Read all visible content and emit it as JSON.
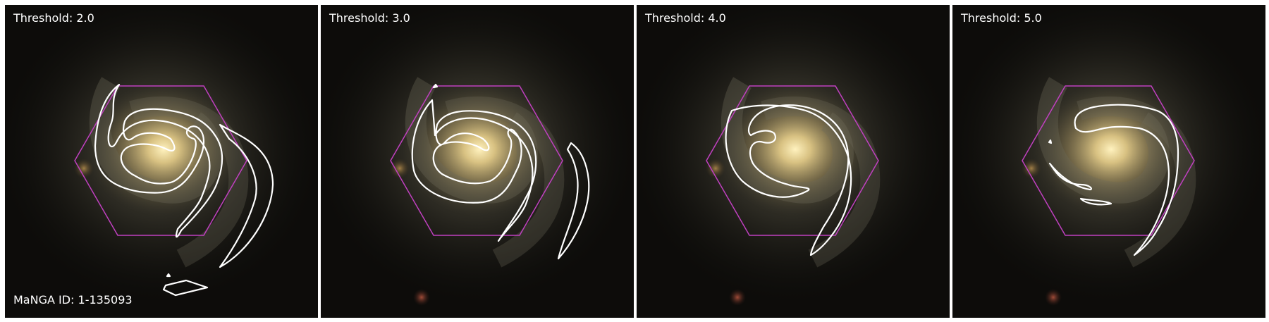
{
  "panels": [
    {
      "label": "Threshold: 2.0"
    },
    {
      "label": "Threshold: 3.0"
    },
    {
      "label": "Threshold: 4.0"
    },
    {
      "label": "Threshold: 5.0"
    }
  ],
  "manga_label": "MaNGA ID: 1-135093",
  "colors": {
    "hexagon": "#c040c0",
    "contour": "#ffffff",
    "background": "#0a0a08",
    "core": "#f8e6a0"
  }
}
